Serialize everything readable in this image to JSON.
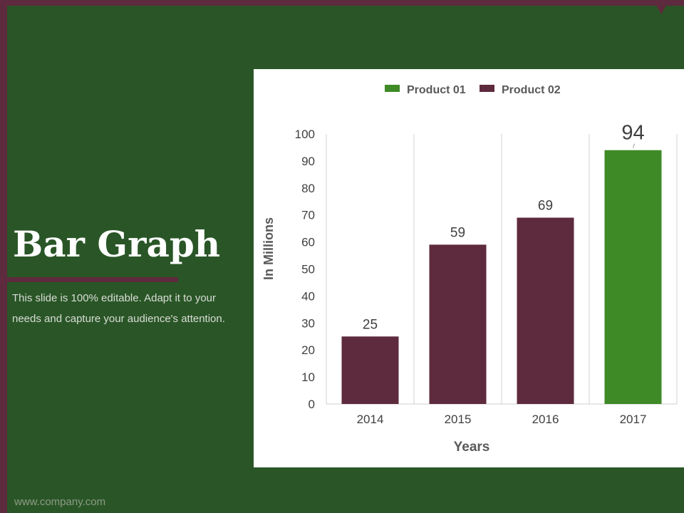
{
  "slide": {
    "title": "Bar Graph",
    "description": "This slide is 100% editable. Adapt it to your needs and capture your audience's attention.",
    "footer": "www.company.com"
  },
  "colors": {
    "background": "#2a5627",
    "accent": "#5e2a3d",
    "product01": "#3e8a26",
    "product02": "#5e2a3d"
  },
  "chart_data": {
    "type": "bar",
    "categories": [
      "2014",
      "2015",
      "2016",
      "2017"
    ],
    "series": [
      {
        "name": "Product 01",
        "color": "#3e8a26"
      },
      {
        "name": "Product 02",
        "color": "#5e2a3d"
      }
    ],
    "bars": [
      {
        "category": "2014",
        "series": "Product 02",
        "value": 25
      },
      {
        "category": "2015",
        "series": "Product 02",
        "value": 59
      },
      {
        "category": "2016",
        "series": "Product 02",
        "value": 69
      },
      {
        "category": "2017",
        "series": "Product 01",
        "value": 94
      }
    ],
    "xlabel": "Years",
    "ylabel": "In Millions",
    "ylim": [
      0,
      100
    ],
    "yticks": [
      0,
      10,
      20,
      30,
      40,
      50,
      60,
      70,
      80,
      90,
      100
    ],
    "legend_position": "top",
    "grid": "vertical-separators"
  }
}
